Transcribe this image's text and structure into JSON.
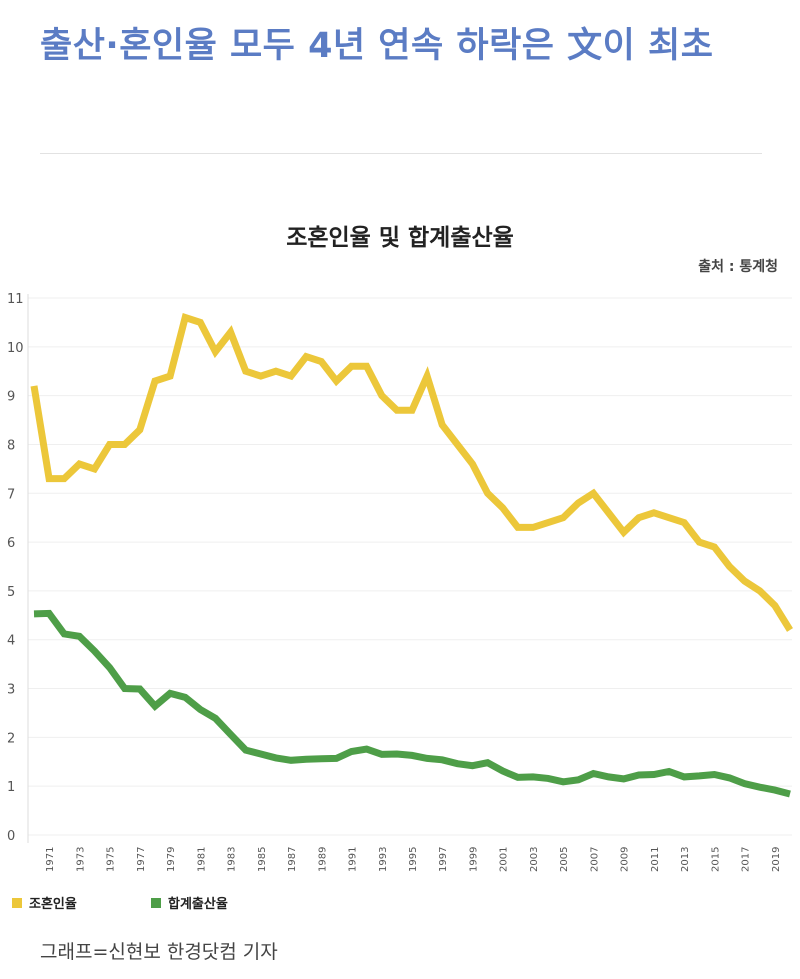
{
  "article": {
    "headline": "출산·혼인율 모두 4년 연속 하락은 文이 최초",
    "caption": "그래프=신현보 한경닷컴 기자"
  },
  "colors": {
    "series_marriage": "#ecc73a",
    "series_fertility": "#4e9e48",
    "headline": "#5b7cc4"
  },
  "chart_data": {
    "type": "line",
    "title": "조혼인율 및 합계출산율",
    "source": "출처 : 통계청",
    "xlabel": "",
    "ylabel": "",
    "ylim": [
      0,
      11
    ],
    "yticks": [
      0,
      1,
      2,
      3,
      4,
      5,
      6,
      7,
      8,
      9,
      10,
      11
    ],
    "xticks": [
      1971,
      1973,
      1975,
      1977,
      1979,
      1981,
      1983,
      1985,
      1987,
      1989,
      1991,
      1993,
      1995,
      1997,
      1999,
      2001,
      2003,
      2005,
      2007,
      2009,
      2011,
      2013,
      2015,
      2017,
      2019
    ],
    "grid": true,
    "legend_position": "bottom-left",
    "x": [
      1970,
      1971,
      1972,
      1973,
      1974,
      1975,
      1976,
      1977,
      1978,
      1979,
      1980,
      1981,
      1982,
      1983,
      1984,
      1985,
      1986,
      1987,
      1988,
      1989,
      1990,
      1991,
      1992,
      1993,
      1994,
      1995,
      1996,
      1997,
      1998,
      1999,
      2000,
      2001,
      2002,
      2003,
      2004,
      2005,
      2006,
      2007,
      2008,
      2009,
      2010,
      2011,
      2012,
      2013,
      2014,
      2015,
      2016,
      2017,
      2018,
      2019,
      2020
    ],
    "series": [
      {
        "name": "조혼인율",
        "color": "#ecc73a",
        "values": [
          9.2,
          7.3,
          7.3,
          7.6,
          7.5,
          8.0,
          8.0,
          8.3,
          9.3,
          9.4,
          10.6,
          10.5,
          9.9,
          10.3,
          9.5,
          9.4,
          9.5,
          9.4,
          9.8,
          9.7,
          9.3,
          9.6,
          9.6,
          9.0,
          8.7,
          8.7,
          9.4,
          8.4,
          8.0,
          7.6,
          7.0,
          6.7,
          6.3,
          6.3,
          6.4,
          6.5,
          6.8,
          7.0,
          6.6,
          6.2,
          6.5,
          6.6,
          6.5,
          6.4,
          6.0,
          5.9,
          5.5,
          5.2,
          5.0,
          4.7,
          4.2
        ]
      },
      {
        "name": "합계출산율",
        "color": "#4e9e48",
        "values": [
          4.53,
          4.54,
          4.12,
          4.07,
          3.77,
          3.43,
          3.0,
          2.99,
          2.64,
          2.9,
          2.82,
          2.57,
          2.39,
          2.06,
          1.74,
          1.66,
          1.58,
          1.53,
          1.55,
          1.56,
          1.57,
          1.71,
          1.76,
          1.65,
          1.66,
          1.63,
          1.57,
          1.54,
          1.46,
          1.42,
          1.48,
          1.31,
          1.18,
          1.19,
          1.16,
          1.09,
          1.13,
          1.26,
          1.19,
          1.15,
          1.23,
          1.24,
          1.3,
          1.19,
          1.21,
          1.24,
          1.17,
          1.05,
          0.98,
          0.92,
          0.84
        ]
      }
    ]
  }
}
